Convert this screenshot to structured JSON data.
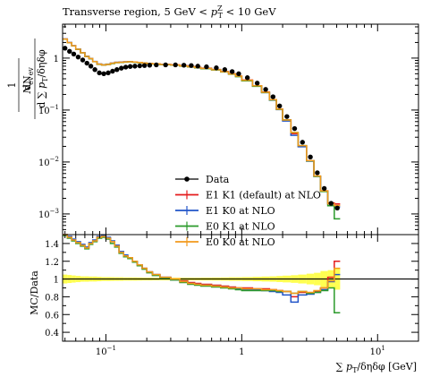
{
  "chart_data": {
    "type": "step-histogram-with-ratio",
    "title": "Transverse region, 5 GeV < p_T^Z < 10 GeV",
    "title_parts": {
      "prefix": "Transverse region, 5 GeV < ",
      "sym": "p",
      "sub": "T",
      "sup": "Z",
      "suffix": " < 10 GeV"
    },
    "xlabel": "∑ p_T/δηδφ [GeV]",
    "xlabel_parts": {
      "prefix": "∑ ",
      "sym": "p",
      "sub": "T",
      "suffix": "/δηδφ [GeV]"
    },
    "ylabel_main": "1/N_ev dN_ev / d∑p_T/δηδφ",
    "ylabel_main_parts": {
      "one": "1",
      "nev": "N",
      "nev_sub": "ev",
      "dnev": "dN",
      "dsum": "d ∑ ",
      "dsum_p": "p",
      "dsum_tail": "/δηδφ"
    },
    "ylabel_ratio": "MC/Data",
    "x_scale": "log",
    "xlim": [
      0.048,
      20
    ],
    "ylim_main": [
      0.0004,
      4.5
    ],
    "ylim_ratio": [
      0.3,
      1.5
    ],
    "x_ticks": [
      {
        "v": 0.1,
        "label": "10",
        "exp": "−1"
      },
      {
        "v": 1,
        "label": "1",
        "exp": ""
      },
      {
        "v": 10,
        "label": "10",
        "exp": "1"
      }
    ],
    "y_ticks_main": [
      {
        "v": 1,
        "label": "1",
        "exp": ""
      },
      {
        "v": 0.1,
        "label": "10",
        "exp": "−1"
      },
      {
        "v": 0.01,
        "label": "10",
        "exp": "−2"
      },
      {
        "v": 0.001,
        "label": "10",
        "exp": "−3"
      }
    ],
    "y_ticks_ratio": [
      {
        "v": 0.4,
        "label": "0.4"
      },
      {
        "v": 0.6,
        "label": "0.6"
      },
      {
        "v": 0.8,
        "label": "0.8"
      },
      {
        "v": 1.0,
        "label": "1"
      },
      {
        "v": 1.2,
        "label": "1.2"
      },
      {
        "v": 1.4,
        "label": "1.4"
      }
    ],
    "legend_position": "bottom-center",
    "bin_edges": [
      0.048,
      0.052,
      0.056,
      0.06,
      0.065,
      0.07,
      0.075,
      0.08,
      0.086,
      0.093,
      0.1,
      0.108,
      0.116,
      0.125,
      0.135,
      0.145,
      0.157,
      0.17,
      0.185,
      0.2,
      0.22,
      0.25,
      0.3,
      0.35,
      0.4,
      0.45,
      0.5,
      0.6,
      0.7,
      0.8,
      0.9,
      1.0,
      1.2,
      1.4,
      1.6,
      1.8,
      2.0,
      2.3,
      2.6,
      3.0,
      3.4,
      3.8,
      4.3,
      4.8,
      5.3
    ],
    "data_points": {
      "x": [
        0.05,
        0.054,
        0.058,
        0.0625,
        0.0675,
        0.0725,
        0.0775,
        0.083,
        0.0895,
        0.0965,
        0.104,
        0.112,
        0.1205,
        0.13,
        0.14,
        0.151,
        0.1635,
        0.1775,
        0.1925,
        0.21,
        0.235,
        0.275,
        0.325,
        0.375,
        0.425,
        0.475,
        0.55,
        0.65,
        0.75,
        0.85,
        0.95,
        1.1,
        1.3,
        1.5,
        1.7,
        1.9,
        2.15,
        2.45,
        2.8,
        3.2,
        3.6,
        4.05,
        4.55,
        5.05
      ],
      "y": [
        1.55,
        1.35,
        1.2,
        1.05,
        0.92,
        0.8,
        0.7,
        0.6,
        0.52,
        0.5,
        0.52,
        0.56,
        0.6,
        0.64,
        0.67,
        0.69,
        0.7,
        0.71,
        0.72,
        0.73,
        0.74,
        0.74,
        0.74,
        0.73,
        0.72,
        0.7,
        0.68,
        0.65,
        0.6,
        0.55,
        0.5,
        0.42,
        0.33,
        0.25,
        0.18,
        0.12,
        0.075,
        0.044,
        0.024,
        0.0125,
        0.0062,
        0.0031,
        0.0016,
        0.0013
      ]
    },
    "data_band_ratio": [
      0.05,
      0.045,
      0.04,
      0.035,
      0.03,
      0.03,
      0.028,
      0.028,
      0.025,
      0.022,
      0.022,
      0.021,
      0.02,
      0.02,
      0.018,
      0.018,
      0.018,
      0.017,
      0.016,
      0.016,
      0.015,
      0.015,
      0.015,
      0.015,
      0.015,
      0.015,
      0.016,
      0.017,
      0.018,
      0.02,
      0.02,
      0.022,
      0.025,
      0.028,
      0.03,
      0.034,
      0.038,
      0.043,
      0.05,
      0.06,
      0.07,
      0.09,
      0.1,
      0.12
    ],
    "series": [
      {
        "name": "E1 K1 (default) at NLO",
        "color": "#e41a1c",
        "ratio": [
          1.5,
          1.47,
          1.44,
          1.41,
          1.38,
          1.35,
          1.4,
          1.43,
          1.47,
          1.48,
          1.46,
          1.42,
          1.38,
          1.3,
          1.26,
          1.24,
          1.2,
          1.16,
          1.12,
          1.08,
          1.05,
          1.02,
          1.0,
          0.98,
          0.96,
          0.95,
          0.94,
          0.93,
          0.92,
          0.91,
          0.9,
          0.9,
          0.89,
          0.89,
          0.88,
          0.87,
          0.86,
          0.8,
          0.85,
          0.84,
          0.86,
          0.9,
          1.02,
          1.2
        ]
      },
      {
        "name": "E1 K0 at NLO",
        "color": "#2154c8",
        "ratio": [
          1.51,
          1.48,
          1.45,
          1.42,
          1.39,
          1.36,
          1.41,
          1.44,
          1.48,
          1.49,
          1.47,
          1.43,
          1.38,
          1.31,
          1.27,
          1.24,
          1.2,
          1.16,
          1.12,
          1.08,
          1.05,
          1.02,
          0.99,
          0.97,
          0.95,
          0.94,
          0.93,
          0.92,
          0.91,
          0.9,
          0.89,
          0.88,
          0.88,
          0.87,
          0.86,
          0.85,
          0.82,
          0.74,
          0.82,
          0.83,
          0.85,
          0.88,
          0.97,
          1.05
        ]
      },
      {
        "name": "E0 K1 at NLO",
        "color": "#2a9a2a",
        "ratio": [
          1.49,
          1.46,
          1.43,
          1.4,
          1.37,
          1.34,
          1.39,
          1.42,
          1.46,
          1.47,
          1.45,
          1.4,
          1.36,
          1.29,
          1.25,
          1.23,
          1.19,
          1.15,
          1.11,
          1.07,
          1.04,
          1.01,
          0.99,
          0.96,
          0.94,
          0.93,
          0.92,
          0.91,
          0.9,
          0.89,
          0.88,
          0.87,
          0.87,
          0.87,
          0.87,
          0.86,
          0.86,
          0.84,
          0.86,
          0.84,
          0.85,
          0.87,
          0.9,
          0.62
        ]
      },
      {
        "name": "E0 K0 at NLO",
        "color": "#f29a1c",
        "ratio": [
          1.5,
          1.47,
          1.44,
          1.41,
          1.38,
          1.35,
          1.4,
          1.43,
          1.47,
          1.48,
          1.46,
          1.42,
          1.37,
          1.3,
          1.26,
          1.24,
          1.2,
          1.16,
          1.12,
          1.08,
          1.05,
          1.02,
          1.0,
          0.97,
          0.95,
          0.94,
          0.93,
          0.92,
          0.91,
          0.9,
          0.9,
          0.89,
          0.89,
          0.88,
          0.88,
          0.87,
          0.86,
          0.84,
          0.86,
          0.85,
          0.87,
          0.9,
          0.98,
          1.12
        ]
      }
    ],
    "legend": {
      "data_label": "Data"
    }
  }
}
